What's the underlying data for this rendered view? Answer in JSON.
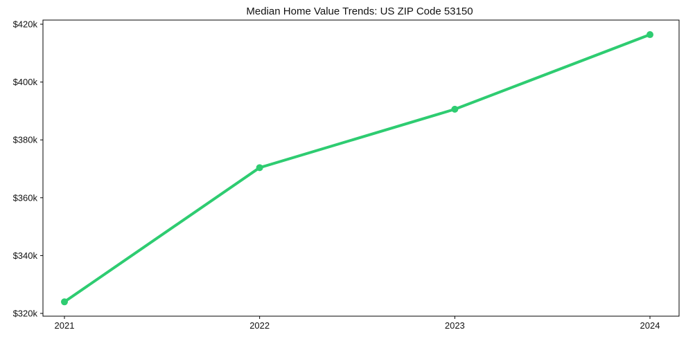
{
  "chart_data": {
    "type": "line",
    "title": "Median Home Value Trends: US ZIP Code 53150",
    "x": [
      "2021",
      "2022",
      "2023",
      "2024"
    ],
    "series": [
      {
        "name": "Median Home Value",
        "values": [
          324000,
          370400,
          390600,
          416400
        ]
      }
    ],
    "xlabel": "",
    "ylabel": "",
    "ylim": [
      319000,
      421500
    ],
    "yticks": [
      {
        "value": 320000,
        "label": "$320k"
      },
      {
        "value": 340000,
        "label": "$340k"
      },
      {
        "value": 360000,
        "label": "$360k"
      },
      {
        "value": 380000,
        "label": "$380k"
      },
      {
        "value": 400000,
        "label": "$400k"
      },
      {
        "value": 420000,
        "label": "$420k"
      }
    ],
    "grid": false,
    "legend": false,
    "marker": "circle",
    "colors": {
      "line": "#2ecc71",
      "marker": "#2ecc71",
      "axis": "#000000",
      "text": "#111111",
      "background": "#ffffff"
    }
  }
}
